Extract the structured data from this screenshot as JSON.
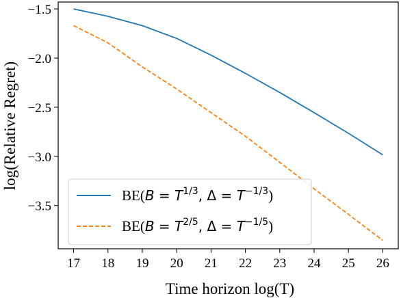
{
  "chart_data": {
    "type": "line",
    "xlabel": "Time horizon log(T)",
    "ylabel": "log(Relative Regret)",
    "x": [
      17,
      18,
      19,
      20,
      21,
      22,
      23,
      24,
      25,
      26
    ],
    "xticks": [
      "17",
      "18",
      "19",
      "20",
      "21",
      "22",
      "23",
      "24",
      "25",
      "26"
    ],
    "yticks": [
      -1.5,
      -2.0,
      -2.5,
      -3.0,
      -3.5
    ],
    "ytick_labels": [
      "−1.5",
      "−2.0",
      "−2.5",
      "−3.0",
      "−3.5"
    ],
    "xlim": [
      16.55,
      26.45
    ],
    "ylim": [
      -3.94,
      -1.43
    ],
    "grid": false,
    "legend_position": "lower-left",
    "series": [
      {
        "name": "BE(B = T^{1/3}, Δ = T^{−1/3})",
        "legend_prefix": "BE(",
        "legend_B": "B",
        "legend_eq1": " = ",
        "legend_T1": "T",
        "legend_exp1": "1/3",
        "legend_comma": ", ",
        "legend_delta": "Δ",
        "legend_eq2": " = ",
        "legend_T2": "T",
        "legend_exp2": "−1/3",
        "legend_suffix": ")",
        "color": "#1f77b4",
        "style": "solid",
        "values": [
          -1.5,
          -1.575,
          -1.67,
          -1.8,
          -1.97,
          -2.155,
          -2.35,
          -2.555,
          -2.765,
          -2.985
        ]
      },
      {
        "name": "BE(B = T^{2/5}, Δ = T^{−1/5})",
        "legend_prefix": "BE(",
        "legend_B": "B",
        "legend_eq1": " = ",
        "legend_T1": "T",
        "legend_exp1": "2/5",
        "legend_comma": ", ",
        "legend_delta": "Δ",
        "legend_eq2": " = ",
        "legend_T2": "T",
        "legend_exp2": "−1/5",
        "legend_suffix": ")",
        "color": "#ff7f0e",
        "style": "dashed",
        "values": [
          -1.67,
          -1.845,
          -2.09,
          -2.315,
          -2.555,
          -2.795,
          -3.06,
          -3.33,
          -3.59,
          -3.855
        ]
      }
    ]
  }
}
